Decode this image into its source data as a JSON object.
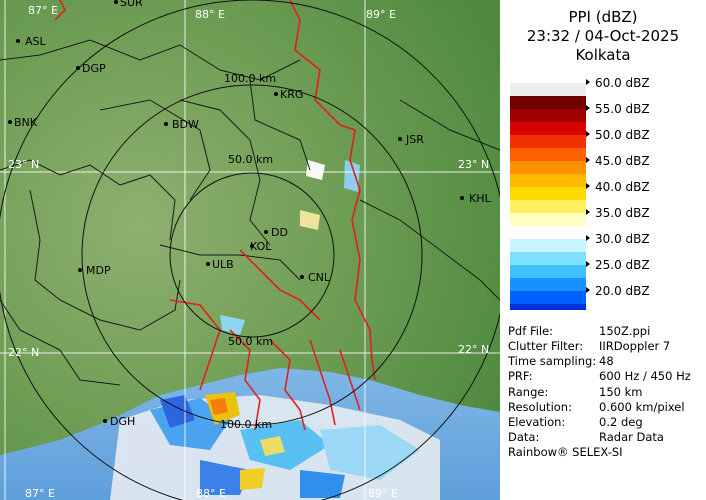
{
  "header": {
    "product": "PPI (dBZ)",
    "datetime": "23:32 / 04-Oct-2025",
    "station": "Kolkata"
  },
  "grid_labels": {
    "lon_87_top": "87° E",
    "lon_88_top": "88° E",
    "lon_89_top": "89° E",
    "lat_23_left": "23° N",
    "lat_22_left": "22° N",
    "lat_23_right": "23° N",
    "lat_22_right": "22° N",
    "lon_87_bottom": "87° E",
    "lon_88_bottom": "88° E",
    "lon_89_bottom": "89° E"
  },
  "range_rings": {
    "r100_top": "100.0 km",
    "r50_top": "50.0 km",
    "r50_bottom": "50.0 km",
    "r100_bottom": "100.0 km"
  },
  "places": [
    {
      "name": "SUR"
    },
    {
      "name": "ASL"
    },
    {
      "name": "DGP"
    },
    {
      "name": "KRG"
    },
    {
      "name": "BNK"
    },
    {
      "name": "BDW"
    },
    {
      "name": "JSR"
    },
    {
      "name": "KHL"
    },
    {
      "name": "DD"
    },
    {
      "name": "KOL"
    },
    {
      "name": "MDP"
    },
    {
      "name": "ULB"
    },
    {
      "name": "CNL"
    },
    {
      "name": "DGH"
    }
  ],
  "legend": {
    "levels": [
      "60.0 dBZ",
      "55.0 dBZ",
      "50.0 dBZ",
      "45.0 dBZ",
      "40.0 dBZ",
      "35.0 dBZ",
      "30.0 dBZ",
      "25.0 dBZ",
      "20.0 dBZ"
    ],
    "colors": [
      "#6e0000",
      "#a00000",
      "#d80000",
      "#f03000",
      "#ff6000",
      "#ff9000",
      "#ffb800",
      "#ffd800",
      "#ffee60",
      "#ffffc0",
      "#ffffff",
      "#c8f4ff",
      "#80e0ff",
      "#40c0ff",
      "#1890ff",
      "#0060ff",
      "#0030e0",
      "#0010b0",
      "#000080",
      "#000060"
    ]
  },
  "info": [
    {
      "label": "Pdf File:",
      "value": "150Z.ppi"
    },
    {
      "label": "Clutter Filter:",
      "value": "IIRDoppler 7"
    },
    {
      "label": "Time sampling:",
      "value": "48"
    },
    {
      "label": "PRF:",
      "value": "600 Hz / 450 Hz"
    },
    {
      "label": "Range:",
      "value": "150 km"
    },
    {
      "label": "Resolution:",
      "value": "0.600 km/pixel"
    },
    {
      "label": "Elevation:",
      "value": "0.2 deg"
    },
    {
      "label": "Data:",
      "value": "Radar Data"
    }
  ],
  "footer": "Rainbow® SELEX-SI"
}
